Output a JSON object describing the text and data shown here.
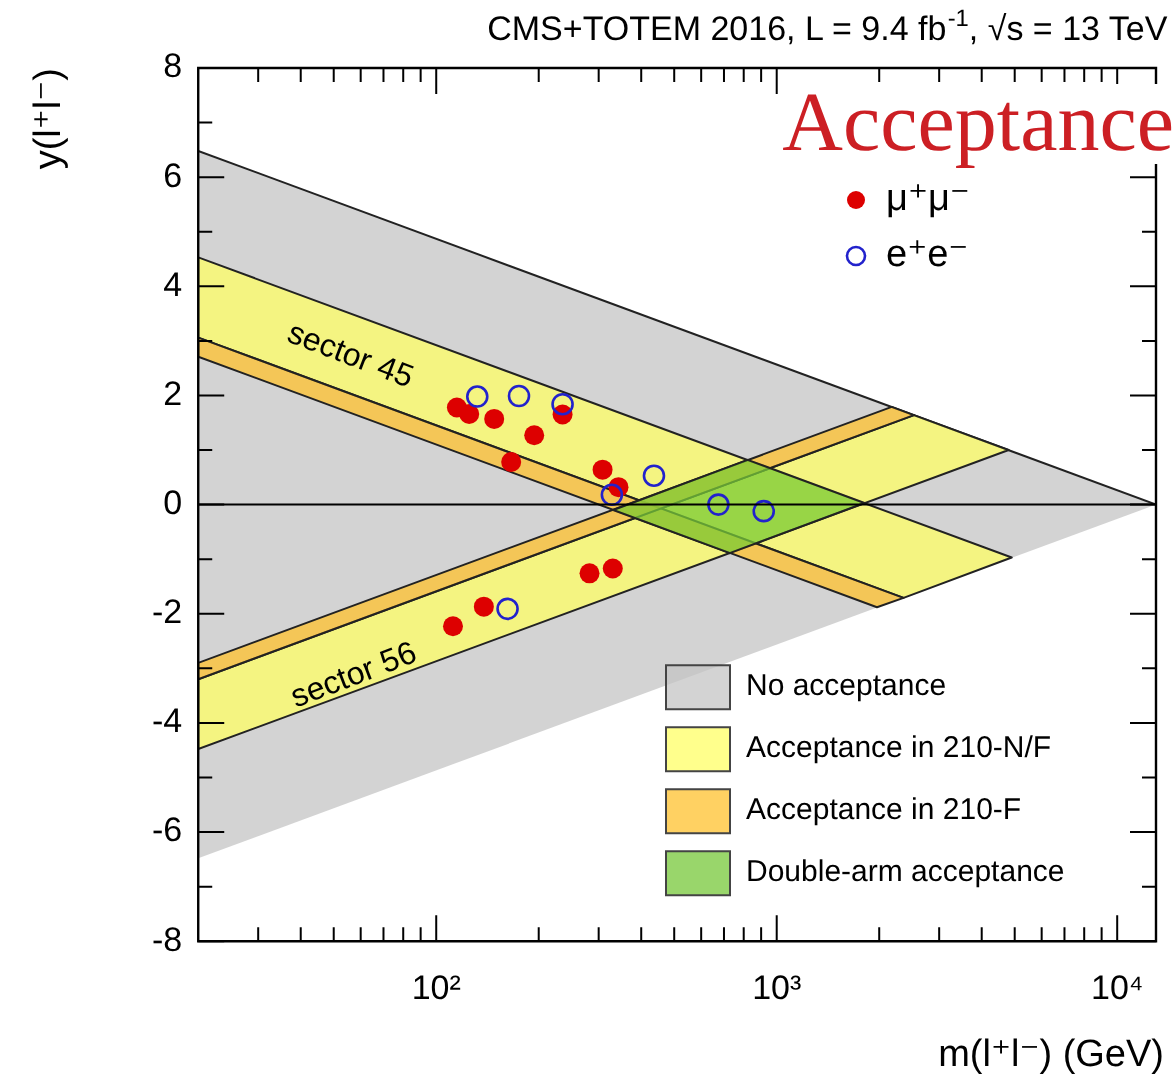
{
  "chart_data": {
    "type": "scatter",
    "title": "CMS+TOTEM 2016, L = 9.4 fb$^{-1}$, √s = 13 TeV",
    "xlabel": "m(l⁺l⁻) (GeV)",
    "ylabel": "y(l⁺l⁻)",
    "annotations": [
      "Acceptance",
      "sector 45",
      "sector 56"
    ],
    "log": "x",
    "xlim": [
      20,
      13000
    ],
    "ylim": [
      -8,
      8
    ],
    "xticks": [
      {
        "value": 30,
        "label": null
      },
      {
        "value": 40,
        "label": null
      },
      {
        "value": 50,
        "label": null
      },
      {
        "value": 60,
        "label": null
      },
      {
        "value": 70,
        "label": null
      },
      {
        "value": 80,
        "label": null
      },
      {
        "value": 90,
        "label": null
      },
      {
        "value": 100,
        "label": "10²"
      },
      {
        "value": 200,
        "label": null
      },
      {
        "value": 300,
        "label": null
      },
      {
        "value": 400,
        "label": null
      },
      {
        "value": 500,
        "label": null
      },
      {
        "value": 600,
        "label": null
      },
      {
        "value": 700,
        "label": null
      },
      {
        "value": 800,
        "label": null
      },
      {
        "value": 900,
        "label": null
      },
      {
        "value": 1000,
        "label": "10³"
      },
      {
        "value": 2000,
        "label": null
      },
      {
        "value": 3000,
        "label": null
      },
      {
        "value": 4000,
        "label": null
      },
      {
        "value": 5000,
        "label": null
      },
      {
        "value": 6000,
        "label": null
      },
      {
        "value": 7000,
        "label": null
      },
      {
        "value": 8000,
        "label": null
      },
      {
        "value": 9000,
        "label": null
      },
      {
        "value": 10000,
        "label": "10⁴"
      }
    ],
    "yticks": [
      -8,
      {
        "value": -7,
        "label": null
      },
      -6,
      {
        "value": -5,
        "label": null
      },
      -4,
      {
        "value": -3,
        "label": null
      },
      -2,
      {
        "value": -1,
        "label": null
      },
      0,
      {
        "value": 1,
        "label": null
      },
      2,
      {
        "value": 3,
        "label": null
      },
      4,
      {
        "value": 5,
        "label": null
      },
      6,
      {
        "value": 7,
        "label": null
      },
      8
    ],
    "legend": "bottom right",
    "grid": false,
    "ref_lines": [
      {
        "axis": "y",
        "value": 0
      }
    ],
    "series": [
      {
        "name": "No acceptance",
        "type": "area",
        "color": "#c4c4c4",
        "x": [
          20,
          13000,
          20
        ],
        "values": [
          6.48,
          0,
          -6.48
        ]
      },
      {
        "name": "Acceptance in 210-N/F",
        "type": "area",
        "color": "#ffff66",
        "x": [
          20,
          4900,
          2358,
          20
        ],
        "values": [
          4.53,
          -0.97,
          -1.71,
          3.06
        ]
      },
      {
        "type": "area",
        "color": "#ffff66",
        "x": [
          20,
          2530,
          4800,
          20
        ],
        "values": [
          -3.2,
          1.64,
          1.0,
          -4.48
        ]
      },
      {
        "name": "Acceptance in 210-F",
        "type": "area",
        "color": "#ffc22e",
        "x": [
          20,
          2358,
          1970,
          20
        ],
        "values": [
          3.06,
          -1.71,
          -1.88,
          2.71
        ]
      },
      {
        "type": "area",
        "color": "#ffc22e",
        "x": [
          20,
          2177,
          2530,
          20
        ],
        "values": [
          -2.9,
          1.79,
          1.64,
          -3.2
        ]
      },
      {
        "name": "Double-arm acceptance",
        "type": "area",
        "color": "#77c83a",
        "x": [
          331,
          821,
          1810,
          728
        ],
        "values": [
          -0.1,
          0.82,
          0.03,
          -0.89
        ]
      },
      {
        "name": "μ⁺μ⁻",
        "color": "#dd0000",
        "marker": "circle",
        "x": [
          115,
          125,
          148,
          194,
          166,
          235,
          308,
          343,
          112,
          138,
          282,
          330
        ],
        "values": [
          1.78,
          1.66,
          1.57,
          1.27,
          0.78,
          1.65,
          0.64,
          0.32,
          -2.23,
          -1.87,
          -1.26,
          -1.17
        ]
      },
      {
        "name": "e⁺e⁻",
        "color": "#2222cc",
        "marker": "circle",
        "x": [
          132,
          175,
          235,
          328,
          436,
          674,
          916,
          162
        ],
        "values": [
          1.98,
          1.99,
          1.84,
          0.18,
          0.53,
          0,
          -0.12,
          -1.91
        ]
      }
    ]
  }
}
